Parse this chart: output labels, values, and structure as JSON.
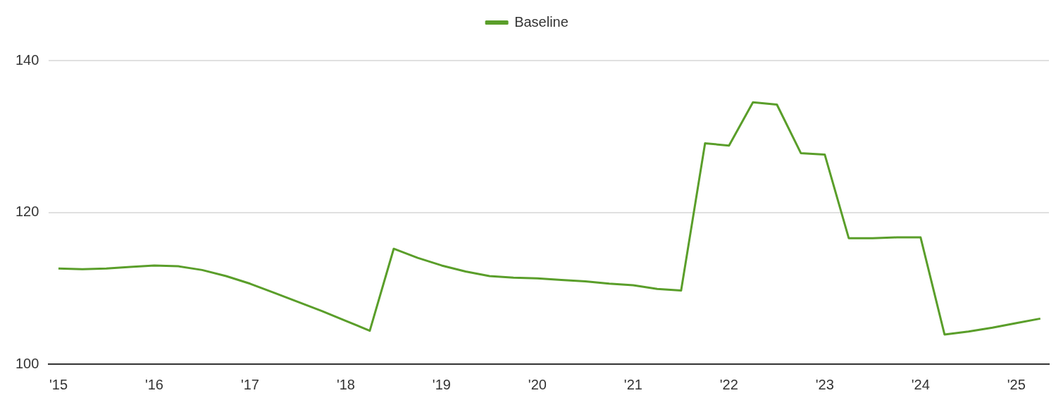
{
  "chart_data": {
    "type": "line",
    "x": [
      2015,
      2015.25,
      2015.5,
      2015.75,
      2016,
      2016.25,
      2016.5,
      2016.75,
      2017,
      2017.25,
      2017.5,
      2017.75,
      2018,
      2018.25,
      2018.5,
      2018.75,
      2019,
      2019.25,
      2019.5,
      2019.75,
      2020,
      2020.25,
      2020.5,
      2020.75,
      2021,
      2021.25,
      2021.5,
      2021.75,
      2022,
      2022.25,
      2022.5,
      2022.75,
      2023,
      2023.25,
      2023.5,
      2023.75,
      2024,
      2024.25,
      2024.5,
      2024.75,
      2025,
      2025.25
    ],
    "series": [
      {
        "name": "Baseline",
        "color": "#5a9e2a",
        "values": [
          112.6,
          112.5,
          112.6,
          112.8,
          113.0,
          112.9,
          112.4,
          111.6,
          110.6,
          109.4,
          108.2,
          107.0,
          105.7,
          104.4,
          115.2,
          114.0,
          113.0,
          112.2,
          111.6,
          111.4,
          111.3,
          111.1,
          110.9,
          110.6,
          110.4,
          109.9,
          109.7,
          129.1,
          128.8,
          134.5,
          134.2,
          127.8,
          127.6,
          116.6,
          116.6,
          116.7,
          116.7,
          103.9,
          104.3,
          104.8,
          105.4,
          106.0
        ]
      }
    ],
    "xlim": [
      2014.9,
      2025.34
    ],
    "xticks": [
      {
        "value": 2015,
        "label": "'15"
      },
      {
        "value": 2016,
        "label": "'16"
      },
      {
        "value": 2017,
        "label": "'17"
      },
      {
        "value": 2018,
        "label": "'18"
      },
      {
        "value": 2019,
        "label": "'19"
      },
      {
        "value": 2020,
        "label": "'20"
      },
      {
        "value": 2021,
        "label": "'21"
      },
      {
        "value": 2022,
        "label": "'22"
      },
      {
        "value": 2023,
        "label": "'23"
      },
      {
        "value": 2024,
        "label": "'24"
      },
      {
        "value": 2025,
        "label": "'25"
      }
    ],
    "ylim": [
      100,
      140
    ],
    "yticks": [
      100,
      120,
      140
    ],
    "grid": "y",
    "legend": "top",
    "marker": "none",
    "line_style": "solid"
  }
}
